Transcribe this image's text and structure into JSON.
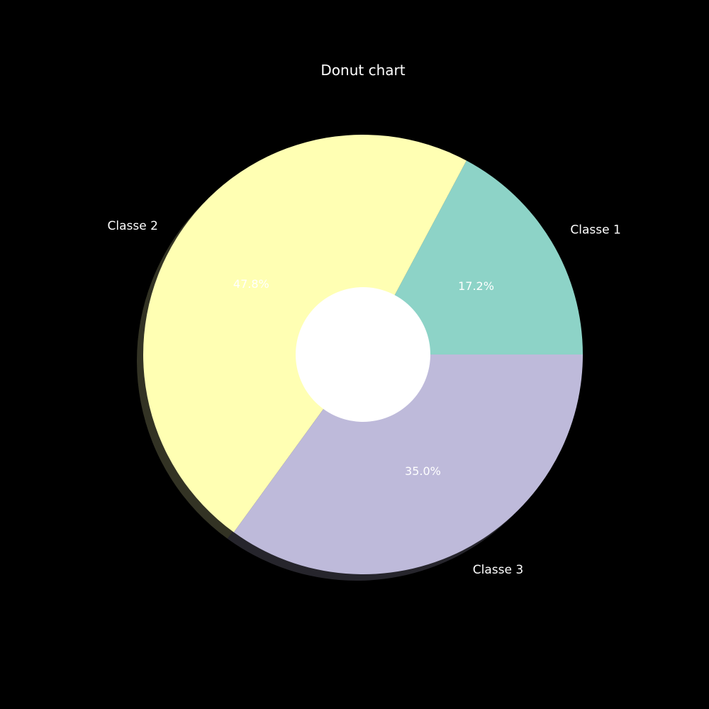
{
  "chart_data": {
    "type": "pie",
    "title": "Donut chart",
    "donut": true,
    "shadow": true,
    "background": "#000000",
    "center_color": "#ffffff",
    "slices": [
      {
        "label": "Classe 1",
        "value": 17.2,
        "pct_label": "17.2%",
        "color": "#8dd3c7"
      },
      {
        "label": "Classe 2",
        "value": 47.8,
        "pct_label": "47.8%",
        "color": "#ffffb3"
      },
      {
        "label": "Classe 3",
        "value": 35.0,
        "pct_label": "35.0%",
        "color": "#bebada"
      }
    ]
  }
}
